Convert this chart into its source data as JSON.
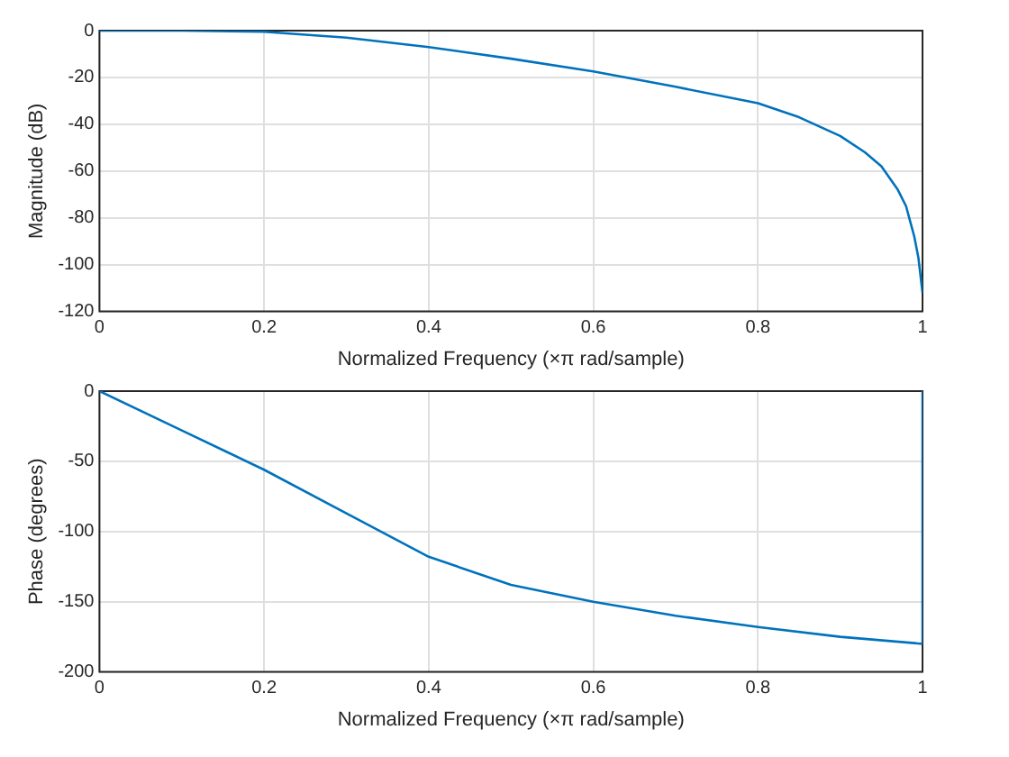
{
  "chart_data": [
    {
      "type": "line",
      "xlabel": "Normalized Frequency (×π rad/sample)",
      "ylabel": "Magnitude (dB)",
      "series": [
        {
          "color": "#0072bd",
          "x": [
            0,
            0.1,
            0.2,
            0.3,
            0.4,
            0.5,
            0.6,
            0.7,
            0.8,
            0.85,
            0.9,
            0.93,
            0.95,
            0.97,
            0.98,
            0.99,
            0.995,
            1
          ],
          "values": [
            0,
            0,
            -0.5,
            -3,
            -7,
            -12,
            -17.4,
            -24,
            -31,
            -37,
            -45,
            -52,
            -58,
            -68,
            -75,
            -88,
            -97,
            -112
          ]
        }
      ],
      "xlim": [
        0,
        1
      ],
      "xticks": [
        0,
        0.2,
        0.4,
        0.6,
        0.8,
        1
      ],
      "ylim": [
        -120,
        0
      ],
      "yticks": [
        -120,
        -100,
        -80,
        -60,
        -40,
        -20,
        0
      ],
      "grid": true
    },
    {
      "type": "line",
      "xlabel": "Normalized Frequency (×π rad/sample)",
      "ylabel": "Phase (degrees)",
      "series": [
        {
          "color": "#0072bd",
          "x": [
            0,
            0.1,
            0.2,
            0.3,
            0.4,
            0.5,
            0.6,
            0.7,
            0.8,
            0.9,
            1,
            1
          ],
          "values": [
            0,
            -28,
            -56,
            -87,
            -118,
            -138,
            -150,
            -160,
            -168,
            -175,
            -180,
            0
          ]
        }
      ],
      "xlim": [
        0,
        1
      ],
      "xticks": [
        0,
        0.2,
        0.4,
        0.6,
        0.8,
        1
      ],
      "ylim": [
        -200,
        0
      ],
      "yticks": [
        -200,
        -150,
        -100,
        -50,
        0
      ],
      "grid": true
    }
  ]
}
